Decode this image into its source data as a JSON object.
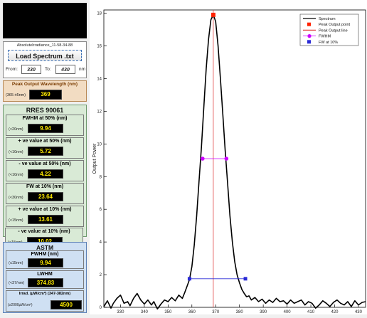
{
  "file": {
    "name": "AbsoluteIrradiance_11-58-34-88",
    "load_label": "Load Spectrum .txt",
    "from_label": "From:",
    "from_value": "330",
    "to_label": "To:",
    "to_value": "430",
    "unit": "nm"
  },
  "peak": {
    "title": "Peak Output Wavelength  (nm)",
    "range_label": "(365 ±5nm)",
    "value": "369"
  },
  "rres": {
    "title": "RRES 90061",
    "items": [
      {
        "title": "FWHM at 50%  (nm)",
        "limit": "(<20nm)",
        "value": "9.94"
      },
      {
        "title": "+ ve value at 50%  (nm)",
        "limit": "(<10nm)",
        "value": "5.72"
      },
      {
        "title": "- ve value at 50%  (nm)",
        "limit": "(<10nm)",
        "value": "4.22"
      },
      {
        "title": "FW at 10%  (nm)",
        "limit": "(<30nm)",
        "value": "23.64"
      },
      {
        "title": "+ ve value at 10%  (nm)",
        "limit": "(<15nm)",
        "value": "13.61"
      },
      {
        "title": "- ve value at 10%  (nm)",
        "limit": "(<15nm)",
        "value": "10.02"
      }
    ]
  },
  "astm": {
    "title": "ASTM",
    "items": [
      {
        "title": "FWHM (nm)",
        "limit": "(≤15nm)",
        "value": "9.94"
      },
      {
        "title": "LWHM",
        "limit": "(<37/nm)",
        "value": "374.83"
      },
      {
        "title": "Irrad. (µW/cm²)  (347-382nm)",
        "limit": "(≥2000µW/cm²)",
        "value": "4500"
      }
    ]
  },
  "chart_data": {
    "type": "line",
    "ylabel": "Output Power",
    "xlabel": "",
    "xlim": [
      323,
      433
    ],
    "ylim": [
      0,
      18.2
    ],
    "xticks": [
      330,
      340,
      350,
      360,
      370,
      380,
      390,
      400,
      410,
      420,
      430
    ],
    "yticks": [
      0,
      2,
      4,
      6,
      8,
      10,
      12,
      14,
      16,
      18
    ],
    "legend": {
      "placement": "top-right",
      "entries": [
        "Spectrum",
        "Peak Output point",
        "Peak Output line",
        "FWHM",
        "FW at 10%"
      ]
    },
    "colors": {
      "spectrum": "#000000",
      "peak_point": "#ff2200",
      "peak_line": "#e04040",
      "fwhm": "#cc00ff",
      "fw10": "#2b2bd6"
    },
    "spectrum": {
      "x": [
        323,
        324.5,
        326,
        327,
        328.5,
        330,
        331.5,
        333,
        334,
        335.5,
        337,
        338.5,
        340,
        341.5,
        343,
        344,
        345.5,
        347,
        348.5,
        350,
        351.5,
        353,
        354.5,
        356,
        357,
        358,
        359,
        360,
        361,
        362,
        363,
        364,
        365,
        366,
        367,
        368,
        369,
        370,
        371,
        372,
        373,
        374,
        375,
        376,
        377,
        378,
        379,
        380,
        381,
        382,
        383,
        384,
        385,
        386.5,
        388,
        389.5,
        391,
        392.5,
        394,
        395.5,
        397,
        398.5,
        400,
        401.5,
        403,
        404.5,
        406,
        407.5,
        409,
        410.5,
        412,
        413.5,
        415,
        416.5,
        418,
        419.5,
        421,
        422.5,
        424,
        425.5,
        427,
        428.5,
        430,
        431.5,
        433
      ],
      "y": [
        0.05,
        0.4,
        -0.05,
        0.25,
        0.55,
        0.75,
        0.25,
        0.35,
        0.1,
        0.55,
        0.85,
        0.45,
        0.2,
        0.45,
        0.15,
        0.35,
        -0.1,
        0.2,
        0.45,
        0.35,
        0.6,
        0.4,
        0.75,
        0.55,
        0.9,
        1.3,
        1.7,
        2.5,
        3.8,
        5.6,
        7.7,
        9.8,
        12.2,
        14.6,
        16.4,
        17.6,
        17.9,
        17.5,
        16.0,
        14.0,
        11.8,
        9.6,
        7.6,
        5.6,
        4.0,
        2.8,
        2.0,
        1.5,
        1.1,
        0.85,
        0.65,
        0.7,
        0.45,
        0.6,
        0.35,
        0.5,
        0.25,
        0.45,
        0.3,
        0.55,
        0.35,
        0.4,
        0.2,
        0.45,
        0.25,
        0.35,
        0.45,
        0.15,
        0.35,
        0.25,
        -0.05,
        0.15,
        0.4,
        0.25,
        0.05,
        0.3,
        0.45,
        0.25,
        0.15,
        0.35,
        0.05,
        0.4,
        0.15,
        0.3,
        0.35
      ]
    },
    "peak_point": {
      "x": 369,
      "y": 17.9
    },
    "fwhm_points": {
      "x": [
        364.5,
        374.5
      ],
      "y": [
        9.1,
        9.1
      ]
    },
    "fw10_points": {
      "x": [
        359,
        382.5
      ],
      "y": [
        1.75,
        1.75
      ]
    }
  }
}
